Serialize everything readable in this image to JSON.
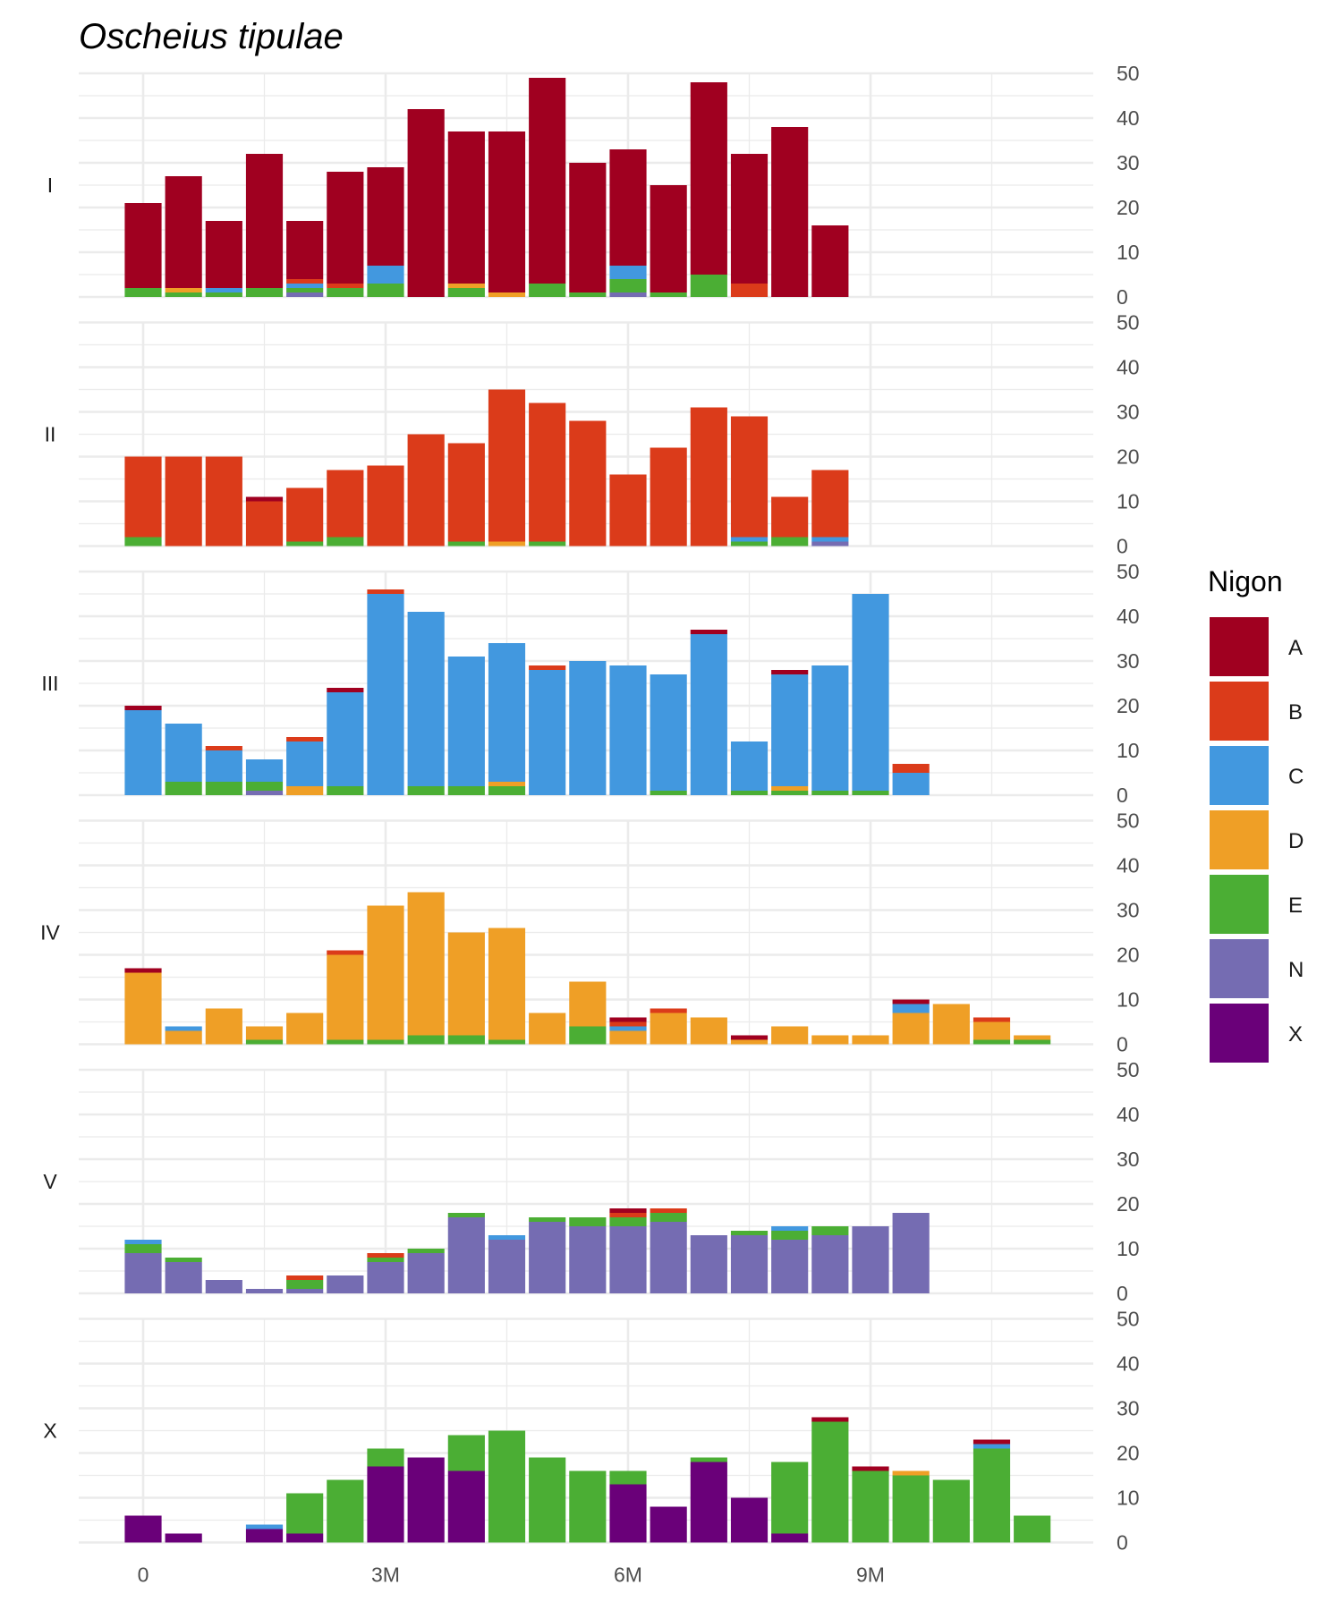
{
  "chart_data": {
    "type": "bar",
    "stacked": true,
    "faceted": true,
    "title": "Oscheius tipulae",
    "xlabel": "",
    "ylabel": "",
    "x_ticks": [
      {
        "label": "0",
        "value": 0
      },
      {
        "label": "3M",
        "value": 3000000
      },
      {
        "label": "6M",
        "value": 6000000
      },
      {
        "label": "9M",
        "value": 9000000
      }
    ],
    "xlim": [
      -800000,
      11600000
    ],
    "y_ticks": [
      "0",
      "10",
      "20",
      "30",
      "40",
      "50"
    ],
    "ylim": [
      0,
      50
    ],
    "y_axis_position": "right",
    "grid": true,
    "legend": {
      "title": "Nigon",
      "position": "right",
      "entries": [
        "A",
        "B",
        "C",
        "D",
        "E",
        "N",
        "X"
      ]
    },
    "colors": {
      "A": "#A00020",
      "B": "#DB3B1A",
      "C": "#4298DF",
      "D": "#EF9F26",
      "E": "#4BAE34",
      "N": "#756CB2",
      "X": "#6A0079"
    },
    "stack_order_bottom_to_top": [
      "X",
      "N",
      "E",
      "D",
      "C",
      "B",
      "A"
    ],
    "bin_width": 500000,
    "facets": [
      {
        "label": "I",
        "bins": [
          {
            "x": 0,
            "E": 2,
            "A": 19
          },
          {
            "x": 500000,
            "E": 1,
            "D": 1,
            "A": 25
          },
          {
            "x": 1000000,
            "E": 1,
            "C": 1,
            "A": 15
          },
          {
            "x": 1500000,
            "E": 2,
            "A": 30
          },
          {
            "x": 2000000,
            "N": 1,
            "E": 1,
            "C": 1,
            "B": 1,
            "A": 13
          },
          {
            "x": 2500000,
            "E": 2,
            "B": 1,
            "A": 25
          },
          {
            "x": 3000000,
            "E": 3,
            "C": 4,
            "A": 22
          },
          {
            "x": 3500000,
            "A": 42
          },
          {
            "x": 4000000,
            "E": 2,
            "D": 1,
            "A": 34
          },
          {
            "x": 4500000,
            "D": 1,
            "A": 36
          },
          {
            "x": 5000000,
            "E": 3,
            "A": 46
          },
          {
            "x": 5500000,
            "E": 1,
            "A": 29
          },
          {
            "x": 6000000,
            "N": 1,
            "E": 3,
            "C": 3,
            "A": 26
          },
          {
            "x": 6500000,
            "E": 1,
            "A": 24
          },
          {
            "x": 7000000,
            "E": 5,
            "A": 43
          },
          {
            "x": 7500000,
            "B": 3,
            "A": 29
          },
          {
            "x": 8000000,
            "A": 38
          },
          {
            "x": 8500000,
            "A": 16
          }
        ]
      },
      {
        "label": "II",
        "bins": [
          {
            "x": 0,
            "E": 2,
            "B": 18
          },
          {
            "x": 500000,
            "B": 20
          },
          {
            "x": 1000000,
            "B": 20
          },
          {
            "x": 1500000,
            "B": 10,
            "A": 1
          },
          {
            "x": 2000000,
            "E": 1,
            "B": 12
          },
          {
            "x": 2500000,
            "E": 2,
            "B": 15
          },
          {
            "x": 3000000,
            "B": 18
          },
          {
            "x": 3500000,
            "B": 25
          },
          {
            "x": 4000000,
            "E": 1,
            "B": 22
          },
          {
            "x": 4500000,
            "D": 1,
            "B": 34
          },
          {
            "x": 5000000,
            "E": 1,
            "B": 31
          },
          {
            "x": 5500000,
            "B": 28
          },
          {
            "x": 6000000,
            "B": 16
          },
          {
            "x": 6500000,
            "B": 22
          },
          {
            "x": 7000000,
            "B": 31
          },
          {
            "x": 7500000,
            "E": 1,
            "C": 1,
            "B": 27
          },
          {
            "x": 8000000,
            "E": 2,
            "B": 9
          },
          {
            "x": 8500000,
            "N": 1,
            "C": 1,
            "B": 15
          }
        ]
      },
      {
        "label": "III",
        "bins": [
          {
            "x": 0,
            "C": 19,
            "A": 1
          },
          {
            "x": 500000,
            "E": 3,
            "C": 13
          },
          {
            "x": 1000000,
            "E": 3,
            "C": 7,
            "B": 1
          },
          {
            "x": 1500000,
            "N": 1,
            "E": 2,
            "C": 5
          },
          {
            "x": 2000000,
            "D": 2,
            "C": 10,
            "B": 1
          },
          {
            "x": 2500000,
            "E": 2,
            "C": 21,
            "A": 1
          },
          {
            "x": 3000000,
            "C": 45,
            "B": 1
          },
          {
            "x": 3500000,
            "E": 2,
            "C": 39
          },
          {
            "x": 4000000,
            "E": 2,
            "C": 29
          },
          {
            "x": 4500000,
            "E": 2,
            "D": 1,
            "C": 31
          },
          {
            "x": 5000000,
            "C": 28,
            "B": 1
          },
          {
            "x": 5500000,
            "C": 30
          },
          {
            "x": 6000000,
            "C": 29
          },
          {
            "x": 6500000,
            "E": 1,
            "C": 26
          },
          {
            "x": 7000000,
            "C": 36,
            "A": 1
          },
          {
            "x": 7500000,
            "E": 1,
            "C": 11
          },
          {
            "x": 8000000,
            "E": 1,
            "D": 1,
            "C": 25,
            "A": 1
          },
          {
            "x": 8500000,
            "E": 1,
            "C": 28
          },
          {
            "x": 9000000,
            "E": 1,
            "C": 44
          },
          {
            "x": 9500000,
            "C": 5,
            "B": 2
          }
        ]
      },
      {
        "label": "IV",
        "bins": [
          {
            "x": 0,
            "D": 16,
            "A": 1
          },
          {
            "x": 500000,
            "D": 3,
            "C": 1
          },
          {
            "x": 1000000,
            "D": 8
          },
          {
            "x": 1500000,
            "E": 1,
            "D": 3
          },
          {
            "x": 2000000,
            "D": 7
          },
          {
            "x": 2500000,
            "E": 1,
            "D": 19,
            "B": 1
          },
          {
            "x": 3000000,
            "E": 1,
            "D": 30
          },
          {
            "x": 3500000,
            "E": 2,
            "D": 32
          },
          {
            "x": 4000000,
            "E": 2,
            "D": 23
          },
          {
            "x": 4500000,
            "E": 1,
            "D": 25
          },
          {
            "x": 5000000,
            "D": 7
          },
          {
            "x": 5500000,
            "E": 4,
            "D": 10
          },
          {
            "x": 6000000,
            "D": 3,
            "C": 1,
            "B": 1,
            "A": 1
          },
          {
            "x": 6500000,
            "D": 7,
            "B": 1
          },
          {
            "x": 7000000,
            "D": 6
          },
          {
            "x": 7500000,
            "D": 1,
            "A": 1
          },
          {
            "x": 8000000,
            "D": 4
          },
          {
            "x": 8500000,
            "D": 2
          },
          {
            "x": 9000000,
            "D": 2
          },
          {
            "x": 9500000,
            "D": 7,
            "C": 2,
            "A": 1
          },
          {
            "x": 10000000,
            "D": 9
          },
          {
            "x": 10500000,
            "E": 1,
            "D": 4,
            "B": 1
          },
          {
            "x": 11000000,
            "E": 1,
            "D": 1
          }
        ]
      },
      {
        "label": "V",
        "bins": [
          {
            "x": 0,
            "N": 9,
            "E": 2,
            "C": 1
          },
          {
            "x": 500000,
            "N": 7,
            "E": 1
          },
          {
            "x": 1000000,
            "N": 3
          },
          {
            "x": 1500000,
            "N": 1
          },
          {
            "x": 2000000,
            "N": 1,
            "E": 2,
            "B": 1
          },
          {
            "x": 2500000,
            "N": 4
          },
          {
            "x": 3000000,
            "N": 7,
            "E": 1,
            "B": 1
          },
          {
            "x": 3500000,
            "N": 9,
            "E": 1
          },
          {
            "x": 4000000,
            "N": 17,
            "E": 1
          },
          {
            "x": 4500000,
            "N": 12,
            "C": 1
          },
          {
            "x": 5000000,
            "N": 16,
            "E": 1
          },
          {
            "x": 5500000,
            "N": 15,
            "E": 2
          },
          {
            "x": 6000000,
            "N": 15,
            "E": 2,
            "B": 1,
            "A": 1
          },
          {
            "x": 6500000,
            "N": 16,
            "E": 2,
            "B": 1
          },
          {
            "x": 7000000,
            "N": 13
          },
          {
            "x": 7500000,
            "N": 13,
            "E": 1
          },
          {
            "x": 8000000,
            "N": 12,
            "E": 2,
            "C": 1
          },
          {
            "x": 8500000,
            "N": 13,
            "E": 2
          },
          {
            "x": 9000000,
            "N": 15
          },
          {
            "x": 9500000,
            "N": 18
          }
        ]
      },
      {
        "label": "X",
        "bins": [
          {
            "x": 0,
            "X": 6
          },
          {
            "x": 500000,
            "X": 2
          },
          {
            "x": 1500000,
            "X": 3,
            "C": 1
          },
          {
            "x": 2000000,
            "X": 2,
            "E": 9
          },
          {
            "x": 2500000,
            "E": 14
          },
          {
            "x": 3000000,
            "X": 17,
            "E": 4
          },
          {
            "x": 3500000,
            "X": 19
          },
          {
            "x": 4000000,
            "X": 16,
            "E": 8
          },
          {
            "x": 4500000,
            "E": 25
          },
          {
            "x": 5000000,
            "E": 19
          },
          {
            "x": 5500000,
            "E": 16
          },
          {
            "x": 6000000,
            "X": 13,
            "E": 3
          },
          {
            "x": 6500000,
            "X": 8
          },
          {
            "x": 7000000,
            "X": 18,
            "E": 1
          },
          {
            "x": 7500000,
            "X": 10
          },
          {
            "x": 8000000,
            "X": 2,
            "E": 16
          },
          {
            "x": 8500000,
            "E": 27,
            "A": 1
          },
          {
            "x": 9000000,
            "E": 16,
            "A": 1
          },
          {
            "x": 9500000,
            "E": 15,
            "D": 1
          },
          {
            "x": 10000000,
            "E": 14
          },
          {
            "x": 10500000,
            "E": 21,
            "C": 1,
            "A": 1
          },
          {
            "x": 11000000,
            "E": 6
          }
        ]
      }
    ]
  }
}
